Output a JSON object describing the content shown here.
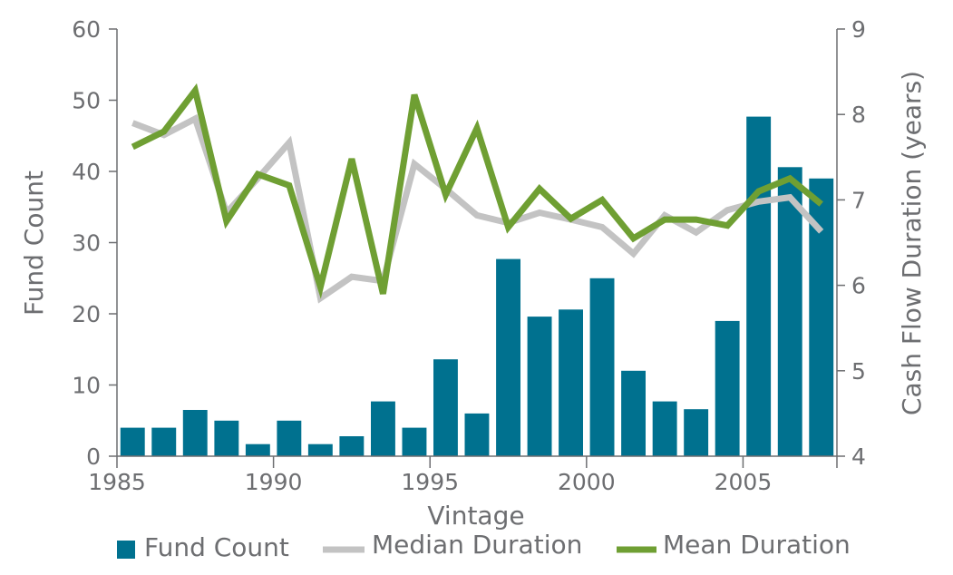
{
  "chart_data": {
    "type": "bar",
    "x": [
      1985,
      1986,
      1987,
      1988,
      1989,
      1990,
      1991,
      1992,
      1993,
      1994,
      1995,
      1996,
      1997,
      1998,
      1999,
      2000,
      2001,
      2002,
      2003,
      2004,
      2005,
      2006,
      2007
    ],
    "x_tick_labels": [
      "1985",
      "1990",
      "1995",
      "2000",
      "2005"
    ],
    "xlabel": "Vintage",
    "ylabel_left": "Fund Count",
    "ylabel_right": "Cash Flow Duration (years)",
    "ylim_left": [
      0,
      60
    ],
    "y_ticks_left": [
      "0",
      "10",
      "20",
      "30",
      "40",
      "50",
      "60"
    ],
    "ylim_right": [
      4,
      9
    ],
    "y_ticks_right": [
      "4",
      "5",
      "6",
      "7",
      "8",
      "9"
    ],
    "grid": false,
    "legend_position": "bottom",
    "series": [
      {
        "name": "Fund Count",
        "type": "bar",
        "axis": "left",
        "color": "#00718f",
        "values": [
          4,
          4,
          6.5,
          5,
          1.7,
          5,
          1.7,
          2.8,
          7.7,
          4,
          13.6,
          6,
          27.7,
          19.6,
          20.6,
          25,
          12,
          7.7,
          6.6,
          19,
          47.7,
          40.6,
          39
        ]
      },
      {
        "name": "Median Duration",
        "type": "line",
        "axis": "right",
        "color": "#c3c3c3",
        "values": [
          7.9,
          7.76,
          7.95,
          6.85,
          7.25,
          7.67,
          5.85,
          6.1,
          6.05,
          7.42,
          7.13,
          6.82,
          6.73,
          6.85,
          6.77,
          6.68,
          6.37,
          6.82,
          6.62,
          6.88,
          6.98,
          7.03,
          6.63
        ]
      },
      {
        "name": "Mean Duration",
        "type": "line",
        "axis": "right",
        "color": "#6f9f33",
        "values": [
          7.62,
          7.8,
          8.28,
          6.75,
          7.3,
          7.17,
          5.98,
          7.48,
          5.9,
          8.23,
          7.06,
          7.84,
          6.68,
          7.13,
          6.78,
          7.0,
          6.55,
          6.77,
          6.77,
          6.7,
          7.1,
          7.25,
          6.95
        ]
      }
    ]
  }
}
